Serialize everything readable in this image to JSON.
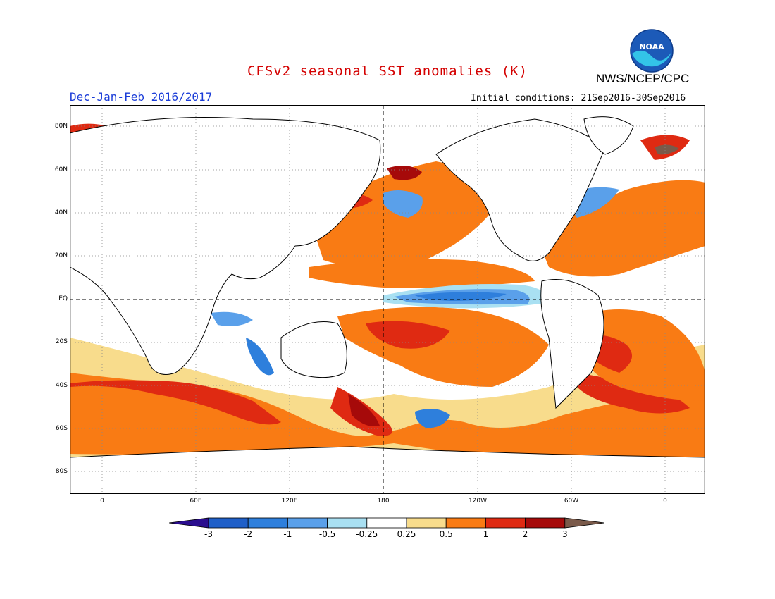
{
  "header": {
    "title": "CFSv2 seasonal SST anomalies (K)",
    "title_color": "#d40000",
    "org": "NWS/NCEP/CPC",
    "season": "Dec-Jan-Feb 2016/2017",
    "season_color": "#1a3cd8",
    "initial_conditions": "Initial conditions: 21Sep2016-30Sep2016",
    "logo_text": "NOAA"
  },
  "map": {
    "projection": "cylindrical equidistant, centered on 180",
    "lat_ticks": [
      "80N",
      "60N",
      "40N",
      "20N",
      "EQ",
      "20S",
      "40S",
      "60S",
      "80S"
    ],
    "lon_ticks": [
      "0",
      "60E",
      "120E",
      "180",
      "120W",
      "60W",
      "0"
    ],
    "grid": "dotted",
    "reference_lines": [
      "EQ",
      "180"
    ]
  },
  "colorbar": {
    "labels": [
      "-3",
      "-2",
      "-1",
      "-0.5",
      "-0.25",
      "0.25",
      "0.5",
      "1",
      "2",
      "3"
    ],
    "colors": [
      "#2a0d8e",
      "#1f5fc8",
      "#2e7fdc",
      "#5aa0ea",
      "#a9e0f2",
      "#ffffff",
      "#f8dc8c",
      "#f97b14",
      "#df2a12",
      "#a60a0a",
      "#7a5a4a"
    ],
    "units": "K"
  }
}
